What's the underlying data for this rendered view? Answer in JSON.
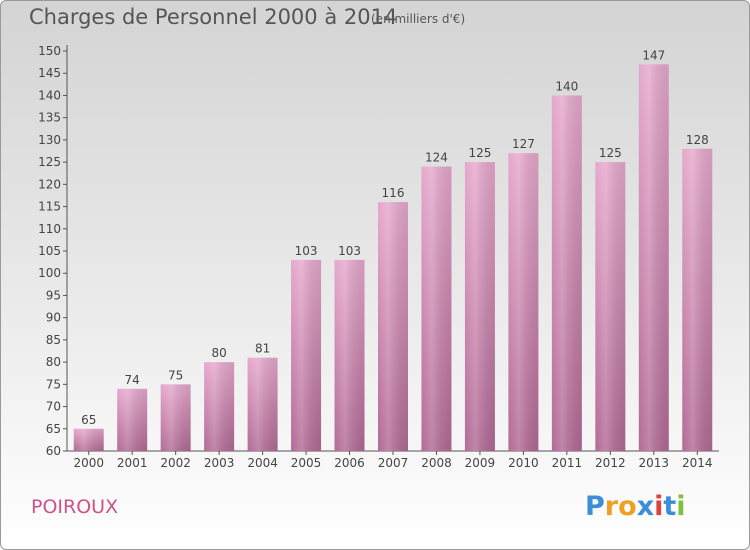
{
  "chart_data": {
    "type": "bar",
    "title": "Charges de Personnel 2000 à 2014",
    "subtitle": "(en milliers d'€)",
    "categories": [
      "2000",
      "2001",
      "2002",
      "2003",
      "2004",
      "2005",
      "2006",
      "2007",
      "2008",
      "2009",
      "2010",
      "2011",
      "2012",
      "2013",
      "2014"
    ],
    "values": [
      65,
      74,
      75,
      80,
      81,
      103,
      103,
      116,
      124,
      125,
      127,
      140,
      125,
      147,
      128
    ],
    "ylim": [
      60,
      150
    ],
    "ytick_step": 5,
    "grid": false,
    "bar_color": "#c77aa6"
  },
  "commune": "POIROUX",
  "logo": {
    "letters": [
      "P",
      "r",
      "o",
      "x",
      "i",
      "t",
      "i"
    ],
    "colors": [
      "#3a8fd8",
      "#f0a020",
      "#f0a020",
      "#3a8fd8",
      "#e04040",
      "#3a8fd8",
      "#80c040"
    ]
  }
}
